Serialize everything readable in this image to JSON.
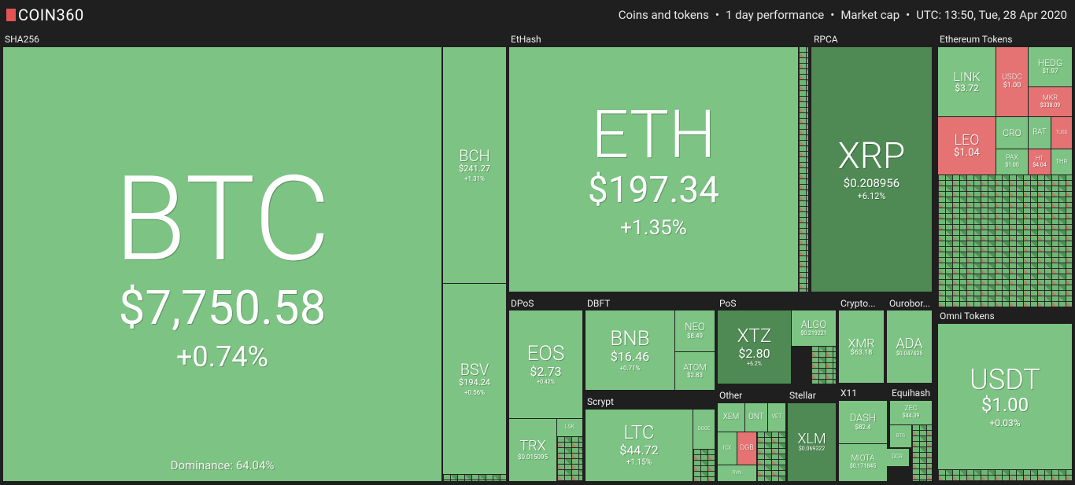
{
  "header": {
    "logo": "COIN360",
    "info": [
      "Coins and tokens",
      "1 day performance",
      "Market cap",
      "UTC: 13:50, Tue, 28 Apr 2020"
    ]
  },
  "groups": [
    {
      "label": "SHA256",
      "tiles": [
        {
          "symbol": "BTC",
          "price": "$7,750.58",
          "change": "+0.74%",
          "note": "Dominance: 64.04%"
        },
        {
          "symbol": "BCH",
          "price": "$241.27",
          "change": "+1.31%"
        },
        {
          "symbol": "BSV",
          "price": "$194.24",
          "change": "+0.56%"
        }
      ]
    },
    {
      "label": "EtHash",
      "tiles": [
        {
          "symbol": "ETH",
          "price": "$197.34",
          "change": "+1.35%"
        }
      ]
    },
    {
      "label": "RPCA",
      "tiles": [
        {
          "symbol": "XRP",
          "price": "$0.208956",
          "change": "+6.12%"
        }
      ]
    },
    {
      "label": "Ethereum Tokens",
      "tiles": [
        {
          "symbol": "LINK",
          "price": "$3.72"
        },
        {
          "symbol": "USDC",
          "price": "$1.00"
        },
        {
          "symbol": "HEDG",
          "price": "$1.97"
        },
        {
          "symbol": "MKR",
          "price": "$338.09"
        },
        {
          "symbol": "LEO",
          "price": "$1.04"
        },
        {
          "symbol": "CRO"
        },
        {
          "symbol": "BAT"
        },
        {
          "symbol": "TUSD"
        },
        {
          "symbol": "PAX",
          "price": "$1.00"
        },
        {
          "symbol": "HT",
          "price": "$4.04"
        },
        {
          "symbol": "THR"
        }
      ]
    },
    {
      "label": "DPoS",
      "tiles": [
        {
          "symbol": "EOS",
          "price": "$2.73",
          "change": "+0.42%"
        },
        {
          "symbol": "TRX",
          "price": "$0.015095"
        },
        {
          "symbol": "LSK"
        }
      ]
    },
    {
      "label": "DBFT",
      "tiles": [
        {
          "symbol": "BNB",
          "price": "$16.46",
          "change": "+0.71%"
        },
        {
          "symbol": "NEO",
          "price": "$8.49"
        },
        {
          "symbol": "ATOM",
          "price": "$2.83"
        }
      ]
    },
    {
      "label": "PoS",
      "tiles": [
        {
          "symbol": "XTZ",
          "price": "$2.80",
          "change": "+6.2%"
        },
        {
          "symbol": "ALGO",
          "price": "$0.219221"
        }
      ]
    },
    {
      "label": "Crypto...",
      "tiles": [
        {
          "symbol": "XMR",
          "price": "$63.18"
        }
      ]
    },
    {
      "label": "Ourobor...",
      "tiles": [
        {
          "symbol": "ADA",
          "price": "$0.047435"
        }
      ]
    },
    {
      "label": "Scrypt",
      "tiles": [
        {
          "symbol": "LTC",
          "price": "$44.72",
          "change": "+1.15%"
        },
        {
          "symbol": "DOGE"
        }
      ]
    },
    {
      "label": "Other",
      "tiles": [
        {
          "symbol": "XEM"
        },
        {
          "symbol": "ONT"
        },
        {
          "symbol": "VET"
        },
        {
          "symbol": "ICX"
        },
        {
          "symbol": "DGB"
        },
        {
          "symbol": "RVN"
        }
      ]
    },
    {
      "label": "Stellar",
      "tiles": [
        {
          "symbol": "XLM",
          "price": "$0.069322"
        }
      ]
    },
    {
      "label": "X11",
      "tiles": [
        {
          "symbol": "DASH",
          "price": "$82.4"
        },
        {
          "symbol": "MIOTA",
          "price": "$0.171845"
        }
      ]
    },
    {
      "label": "Equihash",
      "tiles": [
        {
          "symbol": "ZEC",
          "price": "$44.39"
        },
        {
          "symbol": "BTG"
        },
        {
          "symbol": "DCR"
        }
      ]
    },
    {
      "label": "Omni Tokens",
      "tiles": [
        {
          "symbol": "USDT",
          "price": "$1.00",
          "change": "+0.03%"
        }
      ]
    }
  ]
}
